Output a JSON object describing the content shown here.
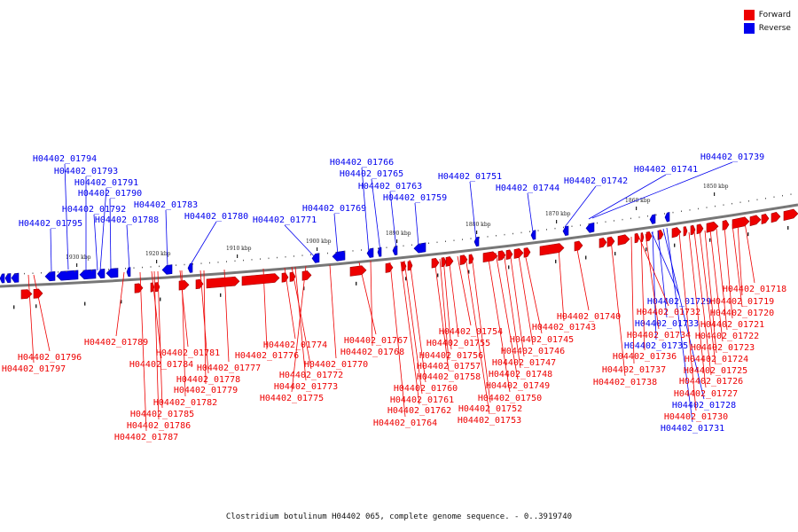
{
  "colors": {
    "forward": "#ee0000",
    "reverse": "#0000ee",
    "backbone": "#777777"
  },
  "legend": {
    "forward_label": "Forward",
    "reverse_label": "Reverse"
  },
  "caption": "Clostridium botulinum H04402 065, complete genome sequence. - 0..3919740",
  "ruler_labels": [
    "1930 kbp",
    "1920 kbp",
    "1910 kbp",
    "1900 kbp",
    "1890 kbp",
    "1880 kbp",
    "1870 kbp",
    "1860 kbp",
    "1850 kbp"
  ],
  "reverse_genes": [
    "H04402_01794",
    "H04402_01793",
    "H04402_01791",
    "H04402_01790",
    "H04402_01792",
    "H04402_01795",
    "H04402_01788",
    "H04402_01783",
    "H04402_01780",
    "H04402_01771",
    "H04402_01769",
    "H04402_01766",
    "H04402_01765",
    "H04402_01763",
    "H04402_01759",
    "H04402_01751",
    "H04402_01744",
    "H04402_01742",
    "H04402_01741",
    "H04402_01739",
    "H04402_01729",
    "H04402_01733",
    "H04402_01735",
    "H04402_01728",
    "H04402_01731"
  ],
  "forward_genes": [
    "H04402_01718",
    "H04402_01719",
    "H04402_01732",
    "H04402_01720",
    "H04402_01721",
    "H04402_01740",
    "H04402_01743",
    "H04402_01734",
    "H04402_01722",
    "H04402_01723",
    "H04402_01736",
    "H04402_01724",
    "H04402_01737",
    "H04402_01725",
    "H04402_01738",
    "H04402_01726",
    "H04402_01727",
    "H04402_01730",
    "H04402_01754",
    "H04402_01745",
    "H04402_01755",
    "H04402_01746",
    "H04402_01756",
    "H04402_01747",
    "H04402_01757",
    "H04402_01748",
    "H04402_01758",
    "H04402_01749",
    "H04402_01750",
    "H04402_01752",
    "H04402_01753",
    "H04402_01767",
    "H04402_01768",
    "H04402_01760",
    "H04402_01761",
    "H04402_01762",
    "H04402_01764",
    "H04402_01774",
    "H04402_01776",
    "H04402_01770",
    "H04402_01772",
    "H04402_01773",
    "H04402_01775",
    "H04402_01789",
    "H04402_01781",
    "H04402_01784",
    "H04402_01777",
    "H04402_01778",
    "H04402_01779",
    "H04402_01782",
    "H04402_01785",
    "H04402_01786",
    "H04402_01787",
    "H04402_01796",
    "H04402_01797"
  ]
}
